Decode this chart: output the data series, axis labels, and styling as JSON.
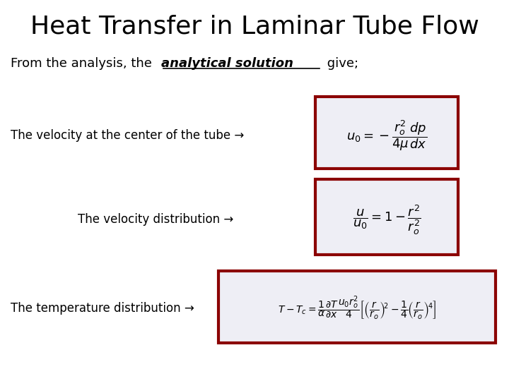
{
  "title": "Heat Transfer in Laminar Tube Flow",
  "line1_normal": "From the analysis, the ",
  "line1_bold_italic": "analytical solution",
  "line1_end": " give;",
  "label1": "The velocity at the center of the tube →",
  "label2": "The velocity distribution →",
  "label3": "The temperature distribution →",
  "eq1": "$u_0 = -\\dfrac{r_o^2}{4\\mu}\\dfrac{dp}{dx}$",
  "eq2": "$\\dfrac{u}{u_0} = 1 - \\dfrac{r^2}{r_o^2}$",
  "eq3": "$T - T_c = \\dfrac{1}{\\alpha}\\dfrac{\\partial T}{\\partial x}\\dfrac{u_0 r_o^2}{4}\\left[\\left(\\dfrac{r}{r_o}\\right)^{\\!2} - \\dfrac{1}{4}\\left(\\dfrac{r}{r_o}\\right)^{\\!4}\\right]$",
  "bg_color": "#ffffff",
  "title_color": "#000000",
  "text_color": "#000000",
  "box_edge_color": "#8B0000",
  "box_face_color": "#eeeef5",
  "title_fontsize": 26,
  "label_fontsize": 12,
  "eq_fontsize": 13
}
